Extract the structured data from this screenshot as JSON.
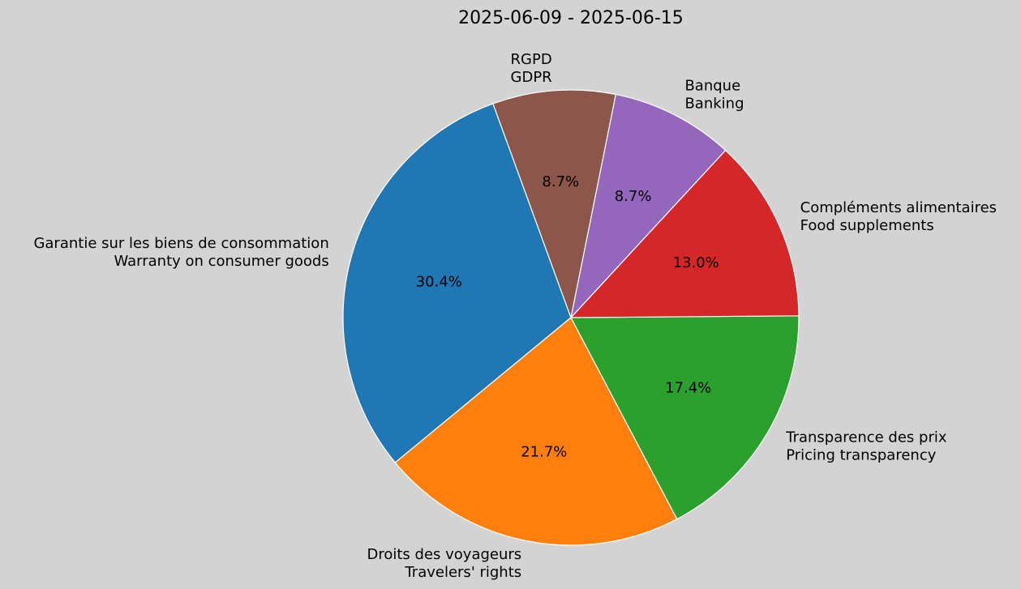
{
  "chart_data": {
    "type": "pie",
    "title": "2025-06-09 - 2025-06-15",
    "start_angle_deg": 110,
    "direction": "counterclockwise",
    "slices": [
      {
        "label": [
          "Garantie sur les biens de consommation",
          "Warranty on consumer goods"
        ],
        "value": 30.4,
        "pct_label": "30.4%",
        "color": "#1f77b4"
      },
      {
        "label": [
          "Droits des voyageurs",
          "Travelers' rights"
        ],
        "value": 21.7,
        "pct_label": "21.7%",
        "color": "#ff7f0e"
      },
      {
        "label": [
          "Transparence des prix",
          "Pricing transparency"
        ],
        "value": 17.4,
        "pct_label": "17.4%",
        "color": "#2ca02c"
      },
      {
        "label": [
          "Compléments alimentaires",
          "Food supplements"
        ],
        "value": 13.0,
        "pct_label": "13.0%",
        "color": "#d62728"
      },
      {
        "label": [
          "Banque",
          "Banking"
        ],
        "value": 8.7,
        "pct_label": "8.7%",
        "color": "#9467bd"
      },
      {
        "label": [
          "RGPD",
          "GDPR"
        ],
        "value": 8.7,
        "pct_label": "8.7%",
        "color": "#8c564b"
      }
    ]
  }
}
